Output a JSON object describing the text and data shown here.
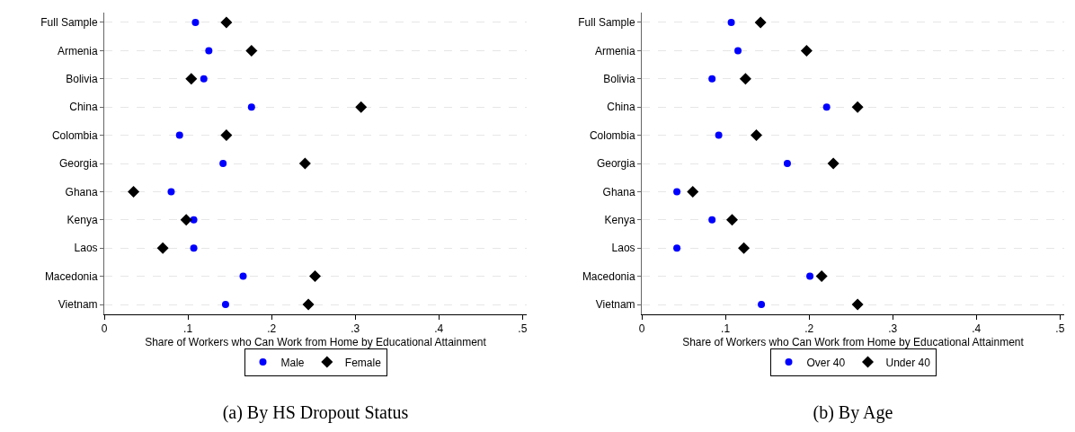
{
  "chart_data": [
    {
      "type": "scatter",
      "orientation": "horizontal",
      "title": "(a) By HS Dropout Status",
      "xlabel": "Share of Workers who Can Work from Home by Educational Attainment",
      "categories": [
        "Full Sample",
        "Armenia",
        "Bolivia",
        "China",
        "Colombia",
        "Georgia",
        "Ghana",
        "Kenya",
        "Laos",
        "Macedonia",
        "Vietnam"
      ],
      "series": [
        {
          "name": "Male",
          "color": "#0000ff",
          "marker": "circle",
          "values": [
            0.109,
            0.125,
            0.119,
            0.176,
            0.09,
            0.142,
            0.08,
            0.107,
            0.107,
            0.166,
            0.145
          ]
        },
        {
          "name": "Female",
          "color": "#000000",
          "marker": "diamond",
          "values": [
            0.146,
            0.176,
            0.104,
            0.307,
            0.146,
            0.24,
            0.035,
            0.098,
            0.07,
            0.252,
            0.244
          ]
        }
      ],
      "xlim": [
        0,
        0.505
      ],
      "xticks": [
        {
          "value": 0,
          "label": "0"
        },
        {
          "value": 0.1,
          "label": ".1"
        },
        {
          "value": 0.2,
          "label": ".2"
        },
        {
          "value": 0.3,
          "label": ".3"
        },
        {
          "value": 0.4,
          "label": ".4"
        },
        {
          "value": 0.5,
          "label": ".5"
        }
      ],
      "grid": "y",
      "legend": "bottom"
    },
    {
      "type": "scatter",
      "orientation": "horizontal",
      "title": "(b) By Age",
      "xlabel": "Share of Workers who Can Work from Home by Educational Attainment",
      "categories": [
        "Full Sample",
        "Armenia",
        "Bolivia",
        "China",
        "Colombia",
        "Georgia",
        "Ghana",
        "Kenya",
        "Laos",
        "Macedonia",
        "Vietnam"
      ],
      "series": [
        {
          "name": "Over 40",
          "color": "#0000ff",
          "marker": "circle",
          "values": [
            0.107,
            0.115,
            0.084,
            0.221,
            0.092,
            0.174,
            0.042,
            0.084,
            0.042,
            0.201,
            0.143
          ]
        },
        {
          "name": "Under 40",
          "color": "#000000",
          "marker": "diamond",
          "values": [
            0.142,
            0.197,
            0.124,
            0.258,
            0.137,
            0.229,
            0.061,
            0.108,
            0.122,
            0.215,
            0.258
          ]
        }
      ],
      "xlim": [
        0,
        0.505
      ],
      "xticks": [
        {
          "value": 0,
          "label": "0"
        },
        {
          "value": 0.1,
          "label": ".1"
        },
        {
          "value": 0.2,
          "label": ".2"
        },
        {
          "value": 0.3,
          "label": ".3"
        },
        {
          "value": 0.4,
          "label": ".4"
        },
        {
          "value": 0.5,
          "label": ".5"
        }
      ],
      "grid": "y",
      "legend": "bottom"
    }
  ]
}
